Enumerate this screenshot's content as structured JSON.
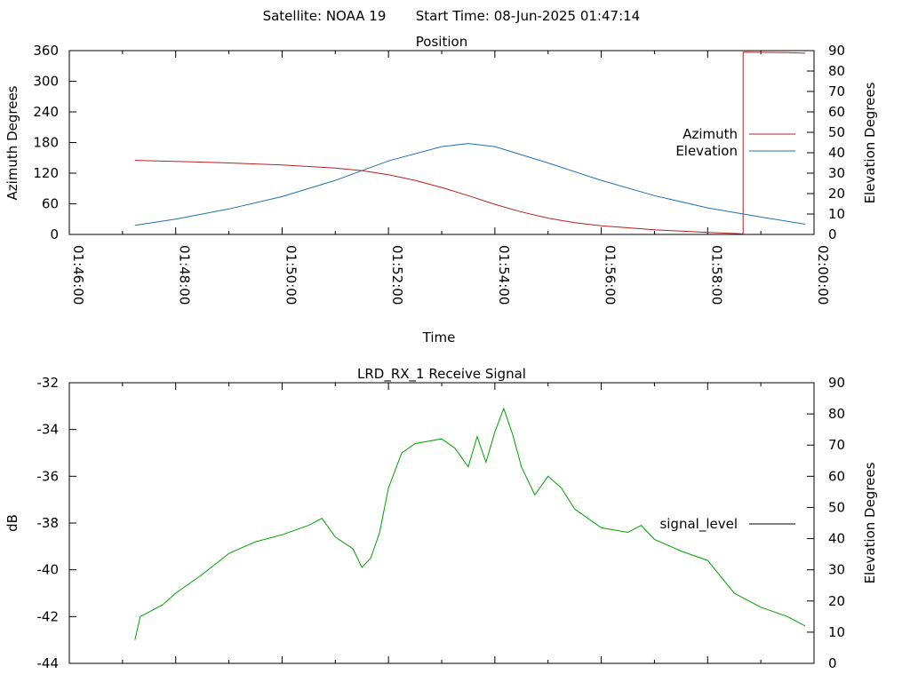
{
  "header": {
    "satellite_label": "Satellite: NOAA 19",
    "start_time_label": "Start Time: 08-Jun-2025 01:47:14"
  },
  "colors": {
    "azimuth": "#b22222",
    "elevation": "#1f6fb5",
    "signal": "#00a000",
    "legend_signal": "#000000"
  },
  "chart_data": [
    {
      "type": "line",
      "title": "Position",
      "xlabel": "Time",
      "ylabel": "Azimuth Degrees",
      "y2label": "Elevation Degrees",
      "xlim": [
        "01:46:00",
        "02:00:00"
      ],
      "ylim": [
        0,
        360
      ],
      "y2lim": [
        0,
        90
      ],
      "x_ticks": [
        "01:46:00",
        "01:48:00",
        "01:50:00",
        "01:52:00",
        "01:54:00",
        "01:56:00",
        "01:58:00",
        "02:00:00"
      ],
      "y_ticks": [
        "0",
        "60",
        "120",
        "180",
        "240",
        "300",
        "360"
      ],
      "y2_ticks": [
        "0",
        "10",
        "20",
        "30",
        "40",
        "50",
        "60",
        "70",
        "80",
        "90"
      ],
      "grid": false,
      "legend_position": "right",
      "series": [
        {
          "name": "Azimuth",
          "axis": "y",
          "x": [
            "01:47:14",
            "01:48:00",
            "01:49:00",
            "01:50:00",
            "01:51:00",
            "01:51:30",
            "01:52:00",
            "01:52:30",
            "01:53:00",
            "01:53:30",
            "01:54:00",
            "01:54:30",
            "01:55:00",
            "01:55:30",
            "01:56:00",
            "01:57:00",
            "01:58:00",
            "01:58:30",
            "01:58:40",
            "01:58:40",
            "01:59:30",
            "01:59:50"
          ],
          "values": [
            145,
            143,
            140,
            136,
            130,
            125,
            117,
            106,
            92,
            76,
            59,
            44,
            32,
            23,
            17,
            9,
            4,
            2,
            1,
            357,
            356,
            355
          ]
        },
        {
          "name": "Elevation",
          "axis": "y2",
          "x": [
            "01:47:14",
            "01:48:00",
            "01:49:00",
            "01:50:00",
            "01:51:00",
            "01:52:00",
            "01:53:00",
            "01:53:30",
            "01:54:00",
            "01:55:00",
            "01:56:00",
            "01:57:00",
            "01:58:00",
            "01:59:00",
            "01:59:50"
          ],
          "values": [
            4.5,
            7.5,
            12.5,
            18.5,
            26.5,
            36,
            43,
            44.5,
            43,
            35,
            26.5,
            19,
            13,
            8.5,
            5
          ]
        }
      ]
    },
    {
      "type": "line",
      "title": "LRD_RX_1 Receive Signal",
      "xlabel": "",
      "ylabel": "dB",
      "y2label": "Elevation Degrees",
      "xlim": [
        "01:46:00",
        "02:00:00"
      ],
      "ylim": [
        -44,
        -32
      ],
      "y2lim": [
        0,
        90
      ],
      "y_ticks": [
        "-44",
        "-42",
        "-40",
        "-38",
        "-36",
        "-34",
        "-32"
      ],
      "y2_ticks": [
        "0",
        "10",
        "20",
        "30",
        "40",
        "50",
        "60",
        "70",
        "80",
        "90"
      ],
      "grid": false,
      "legend_position": "right",
      "series": [
        {
          "name": "signal_level",
          "axis": "y",
          "x": [
            "01:47:14",
            "01:47:20",
            "01:47:30",
            "01:47:45",
            "01:48:00",
            "01:48:30",
            "01:49:00",
            "01:49:30",
            "01:50:00",
            "01:50:30",
            "01:50:45",
            "01:51:00",
            "01:51:20",
            "01:51:30",
            "01:51:40",
            "01:51:50",
            "01:52:00",
            "01:52:15",
            "01:52:30",
            "01:53:00",
            "01:53:15",
            "01:53:30",
            "01:53:40",
            "01:53:50",
            "01:54:00",
            "01:54:10",
            "01:54:20",
            "01:54:30",
            "01:54:45",
            "01:55:00",
            "01:55:15",
            "01:55:30",
            "01:56:00",
            "01:56:30",
            "01:56:45",
            "01:57:00",
            "01:57:30",
            "01:58:00",
            "01:58:30",
            "01:59:00",
            "01:59:30",
            "01:59:50"
          ],
          "values": [
            -43,
            -42,
            -41.8,
            -41.5,
            -41,
            -40.2,
            -39.3,
            -38.8,
            -38.5,
            -38.1,
            -37.8,
            -38.6,
            -39.1,
            -39.9,
            -39.5,
            -38.4,
            -36.5,
            -35,
            -34.6,
            -34.4,
            -34.8,
            -35.6,
            -34.3,
            -35.4,
            -34.1,
            -33.1,
            -34.2,
            -35.6,
            -36.8,
            -36,
            -36.5,
            -37.4,
            -38.2,
            -38.4,
            -38.1,
            -38.7,
            -39.2,
            -39.6,
            -41,
            -41.6,
            -42,
            -42.4
          ]
        }
      ]
    }
  ]
}
